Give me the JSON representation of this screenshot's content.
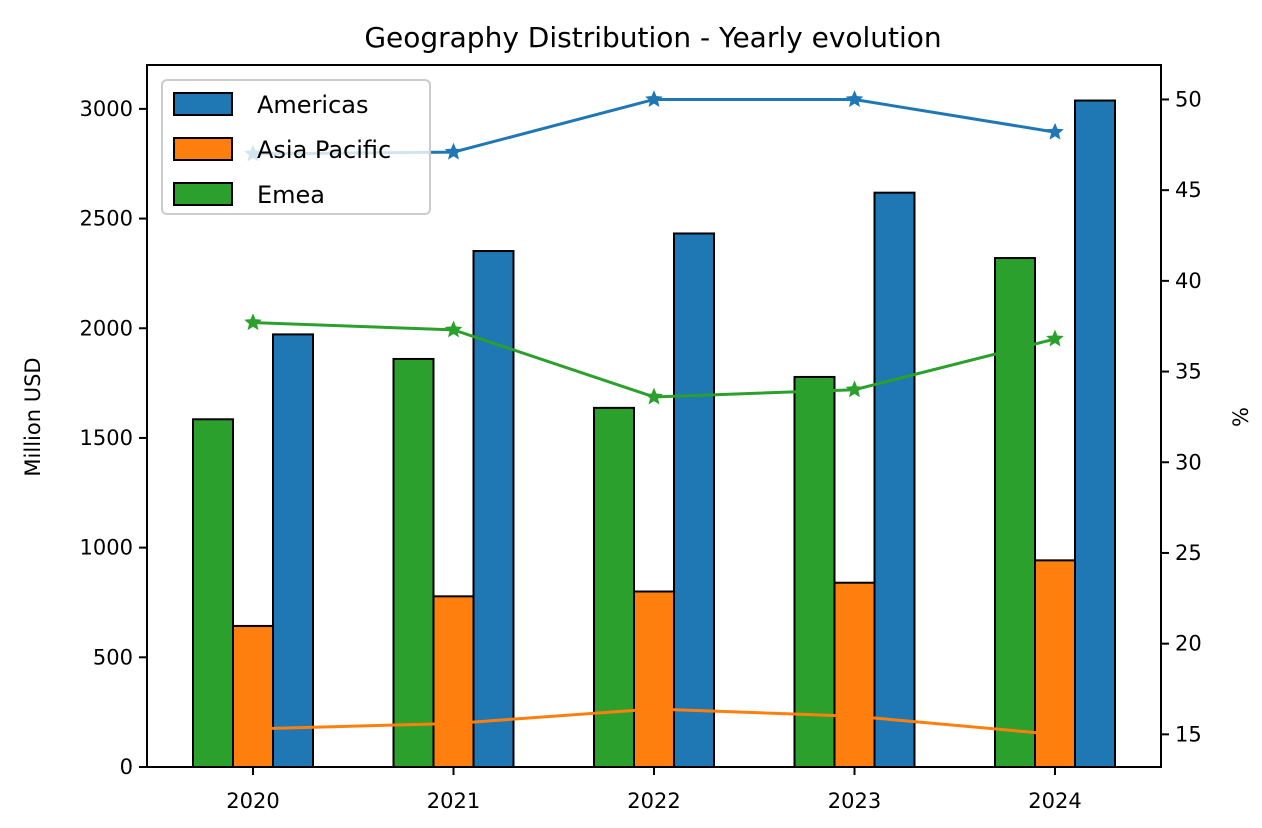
{
  "chart_data": {
    "type": "bar",
    "title": "Geography Distribution - Yearly evolution",
    "categories": [
      "2020",
      "2021",
      "2022",
      "2023",
      "2024"
    ],
    "ylabel": "Million USD",
    "y2label": "%",
    "ylim": [
      0,
      3200
    ],
    "y2lim": [
      13.2,
      51.9
    ],
    "yticks": [
      0,
      500,
      1000,
      1500,
      2000,
      2500,
      3000
    ],
    "y2ticks": [
      15,
      20,
      25,
      30,
      35,
      40,
      45,
      50
    ],
    "grid": false,
    "legend_position": "top-left",
    "series": [
      {
        "name": "Emea",
        "color": "#2ca02c",
        "values": [
          1585,
          1860,
          1637,
          1778,
          2320
        ]
      },
      {
        "name": "Asia Pacific",
        "color": "#ff7f0e",
        "values": [
          643,
          778,
          800,
          840,
          942
        ]
      },
      {
        "name": "Americas",
        "color": "#1f77b4",
        "values": [
          1972,
          2352,
          2432,
          2618,
          3038
        ]
      }
    ],
    "share_lines": [
      {
        "name": "Americas %",
        "color": "#1f77b4",
        "marker": "star",
        "values": [
          47.0,
          47.1,
          50.0,
          50.0,
          48.2
        ]
      },
      {
        "name": "Emea %",
        "color": "#2ca02c",
        "marker": "star",
        "values": [
          37.7,
          37.3,
          33.6,
          34.0,
          36.8
        ]
      },
      {
        "name": "Asia Pacific %",
        "color": "#ff7f0e",
        "marker": "none",
        "values": [
          15.3,
          15.6,
          16.4,
          16.0,
          15.0
        ]
      }
    ],
    "legend": [
      "Americas",
      "Asia Pacific",
      "Emea"
    ]
  }
}
